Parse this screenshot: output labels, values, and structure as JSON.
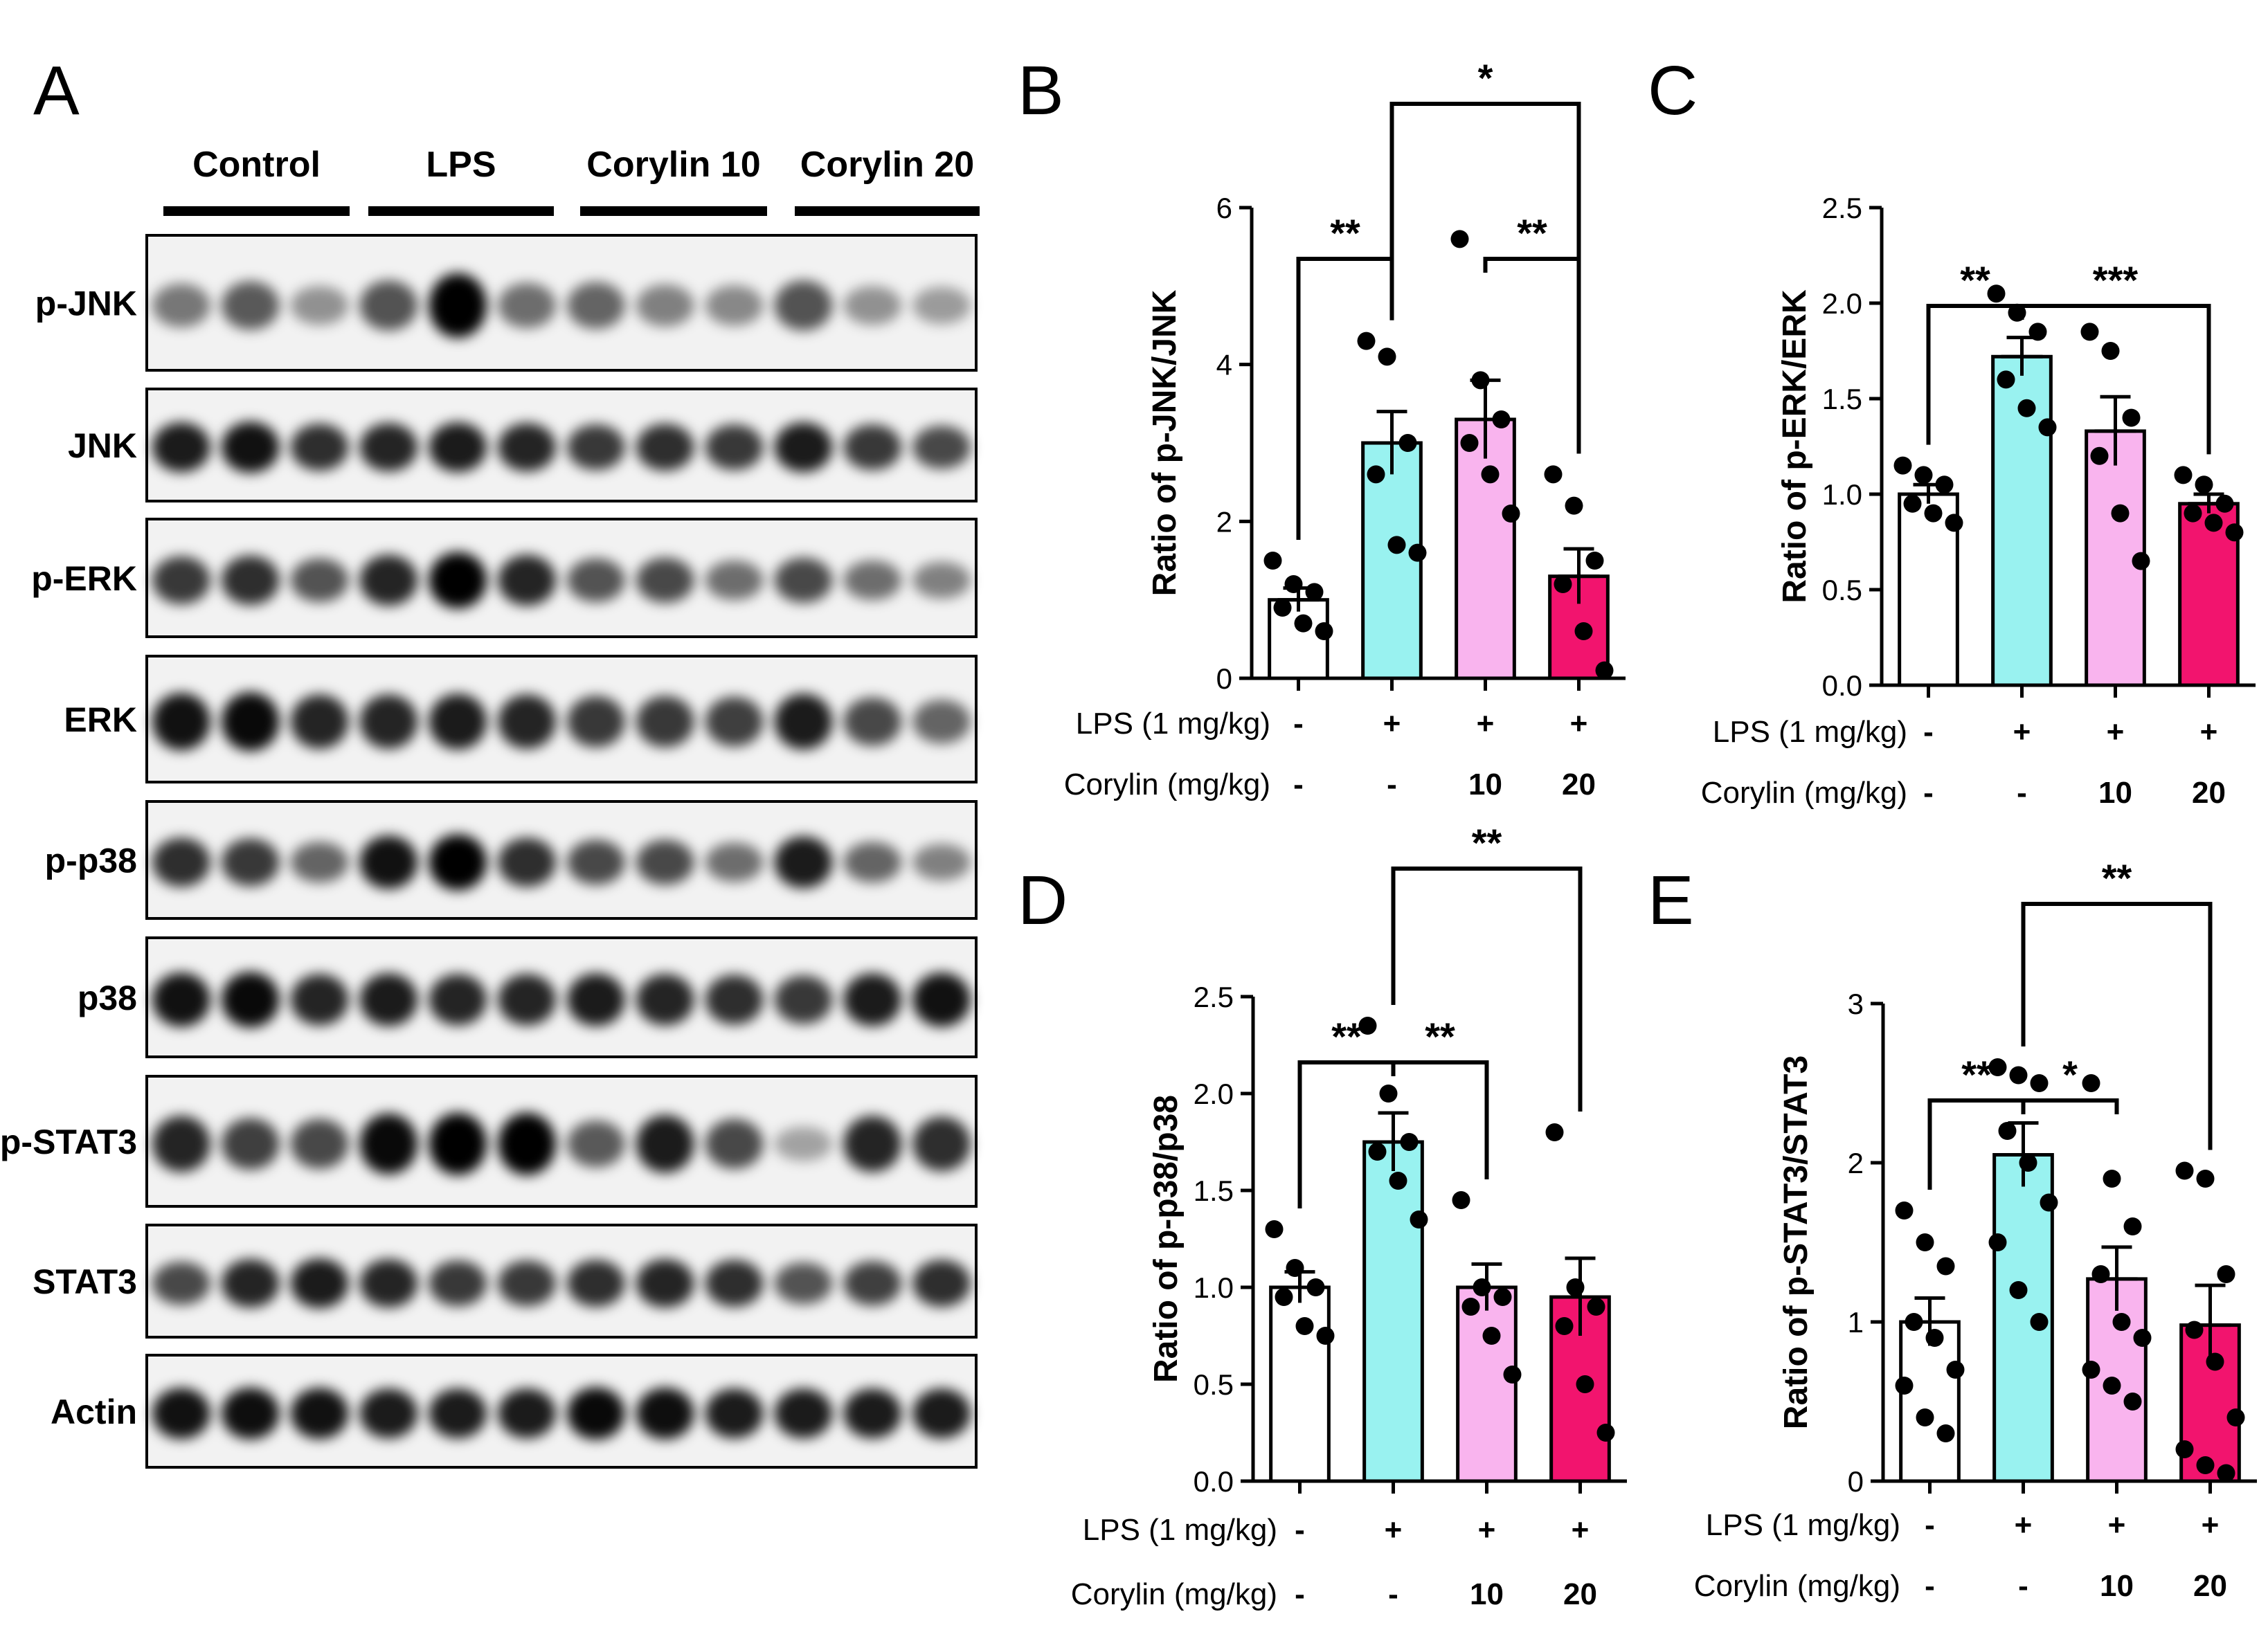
{
  "panel_labels": [
    "A",
    "B",
    "C",
    "D",
    "E"
  ],
  "blot": {
    "groups": [
      "Control",
      "LPS",
      "Corylin 10",
      "Corylin 20"
    ],
    "rows": [
      {
        "label": "p-JNK",
        "intensity": [
          [
            0.35,
            0.5,
            0.2
          ],
          [
            0.55,
            1.0,
            0.4
          ],
          [
            0.45,
            0.3,
            0.25
          ],
          [
            0.55,
            0.2,
            0.15
          ]
        ]
      },
      {
        "label": "JNK",
        "intensity": [
          [
            0.85,
            0.9,
            0.75
          ],
          [
            0.8,
            0.85,
            0.8
          ],
          [
            0.7,
            0.75,
            0.7
          ],
          [
            0.85,
            0.7,
            0.6
          ]
        ]
      },
      {
        "label": "p-ERK",
        "intensity": [
          [
            0.7,
            0.75,
            0.55
          ],
          [
            0.8,
            1.0,
            0.8
          ],
          [
            0.55,
            0.6,
            0.4
          ],
          [
            0.6,
            0.4,
            0.3
          ]
        ]
      },
      {
        "label": "ERK",
        "intensity": [
          [
            0.9,
            0.95,
            0.8
          ],
          [
            0.8,
            0.85,
            0.8
          ],
          [
            0.7,
            0.7,
            0.65
          ],
          [
            0.85,
            0.6,
            0.45
          ]
        ]
      },
      {
        "label": "p-p38",
        "intensity": [
          [
            0.75,
            0.7,
            0.45
          ],
          [
            0.9,
            1.0,
            0.75
          ],
          [
            0.6,
            0.6,
            0.4
          ],
          [
            0.85,
            0.45,
            0.3
          ]
        ]
      },
      {
        "label": "p38",
        "intensity": [
          [
            0.9,
            0.95,
            0.8
          ],
          [
            0.85,
            0.8,
            0.8
          ],
          [
            0.85,
            0.8,
            0.75
          ],
          [
            0.7,
            0.85,
            0.9
          ]
        ]
      },
      {
        "label": "p-STAT3",
        "intensity": [
          [
            0.8,
            0.65,
            0.6
          ],
          [
            0.95,
            1.0,
            1.0
          ],
          [
            0.5,
            0.85,
            0.6
          ],
          [
            0.1,
            0.8,
            0.75
          ]
        ]
      },
      {
        "label": "STAT3",
        "intensity": [
          [
            0.6,
            0.8,
            0.85
          ],
          [
            0.8,
            0.7,
            0.7
          ],
          [
            0.75,
            0.8,
            0.75
          ],
          [
            0.55,
            0.65,
            0.75
          ]
        ]
      },
      {
        "label": "Actin",
        "intensity": [
          [
            0.9,
            0.92,
            0.9
          ],
          [
            0.85,
            0.85,
            0.85
          ],
          [
            0.95,
            0.92,
            0.85
          ],
          [
            0.85,
            0.85,
            0.85
          ]
        ]
      }
    ]
  },
  "chart_data": [
    {
      "panel": "B",
      "type": "bar",
      "ylabel": "Ratio of p-JNK/JNK",
      "ylim": [
        0,
        6
      ],
      "yticks": [
        "0",
        "2",
        "4",
        "6"
      ],
      "ytick_values": [
        0,
        2,
        4,
        6
      ],
      "values": [
        1.0,
        3.0,
        3.3,
        1.3
      ],
      "errors": [
        0.15,
        0.4,
        0.5,
        0.35
      ],
      "points": [
        [
          1.5,
          1.2,
          1.1,
          0.9,
          0.7,
          0.6
        ],
        [
          4.3,
          4.1,
          3.0,
          2.6,
          1.7,
          1.6
        ],
        [
          5.6,
          3.8,
          3.3,
          3.0,
          2.6,
          2.1
        ],
        [
          2.6,
          2.2,
          1.5,
          1.2,
          0.6,
          0.1
        ]
      ],
      "colors": [
        "#ffffff",
        "#99f2f0",
        "#f9b4ee",
        "#f2146e"
      ],
      "condition_rows": [
        {
          "label": "LPS (1 mg/kg)",
          "values": [
            "-",
            "+",
            "+",
            "+"
          ]
        },
        {
          "label": "Corylin (mg/kg)",
          "values": [
            "-",
            "-",
            "10",
            "20"
          ]
        }
      ],
      "significance": [
        {
          "from": 0,
          "to": 1,
          "label": "**",
          "level": 0
        },
        {
          "from": 2,
          "to": 3,
          "label": "**",
          "level": 0
        },
        {
          "from": 1,
          "to": 3,
          "label": "*",
          "level": 1
        }
      ]
    },
    {
      "panel": "C",
      "type": "bar",
      "ylabel": "Ratio of p-ERK/ERK",
      "ylim": [
        0,
        2.5
      ],
      "yticks": [
        "0.0",
        "0.5",
        "1.0",
        "1.5",
        "2.0",
        "2.5"
      ],
      "ytick_values": [
        0,
        0.5,
        1.0,
        1.5,
        2.0,
        2.5
      ],
      "values": [
        1.0,
        1.72,
        1.33,
        0.95
      ],
      "errors": [
        0.05,
        0.1,
        0.18,
        0.05
      ],
      "points": [
        [
          1.15,
          1.1,
          1.05,
          0.95,
          0.9,
          0.85
        ],
        [
          2.05,
          1.95,
          1.85,
          1.6,
          1.45,
          1.35
        ],
        [
          1.85,
          1.75,
          1.4,
          1.2,
          0.9,
          0.65
        ],
        [
          1.1,
          1.05,
          0.95,
          0.9,
          0.85,
          0.8
        ]
      ],
      "colors": [
        "#ffffff",
        "#99f2f0",
        "#f9b4ee",
        "#f2146e"
      ],
      "condition_rows": [
        {
          "label": "LPS (1 mg/kg)",
          "values": [
            "-",
            "+",
            "+",
            "+"
          ]
        },
        {
          "label": "Corylin (mg/kg)",
          "values": [
            "-",
            "-",
            "10",
            "20"
          ]
        }
      ],
      "significance": [
        {
          "from": 0,
          "to": 1,
          "label": "**",
          "level": 0
        },
        {
          "from": 1,
          "to": 3,
          "label": "***",
          "level": 0
        }
      ]
    },
    {
      "panel": "D",
      "type": "bar",
      "ylabel": "Ratio of p-p38/p38",
      "ylim": [
        0,
        2.5
      ],
      "yticks": [
        "0.0",
        "0.5",
        "1.0",
        "1.5",
        "2.0",
        "2.5"
      ],
      "ytick_values": [
        0,
        0.5,
        1.0,
        1.5,
        2.0,
        2.5
      ],
      "values": [
        1.0,
        1.75,
        1.0,
        0.95
      ],
      "errors": [
        0.08,
        0.15,
        0.12,
        0.2
      ],
      "points": [
        [
          1.3,
          1.1,
          1.0,
          0.95,
          0.8,
          0.75
        ],
        [
          2.35,
          2.0,
          1.75,
          1.7,
          1.55,
          1.35
        ],
        [
          1.45,
          1.0,
          0.95,
          0.9,
          0.75,
          0.55
        ],
        [
          1.8,
          1.0,
          0.9,
          0.8,
          0.5,
          0.25
        ]
      ],
      "colors": [
        "#ffffff",
        "#99f2f0",
        "#f9b4ee",
        "#f2146e"
      ],
      "condition_rows": [
        {
          "label": "LPS (1 mg/kg)",
          "values": [
            "-",
            "+",
            "+",
            "+"
          ]
        },
        {
          "label": "Corylin (mg/kg)",
          "values": [
            "-",
            "-",
            "10",
            "20"
          ]
        }
      ],
      "significance": [
        {
          "from": 0,
          "to": 1,
          "label": "**",
          "level": 0
        },
        {
          "from": 1,
          "to": 2,
          "label": "**",
          "level": 0
        },
        {
          "from": 1,
          "to": 3,
          "label": "**",
          "level": 1
        }
      ]
    },
    {
      "panel": "E",
      "type": "bar",
      "ylabel": "Ratio of p-STAT3/STAT3",
      "ylim": [
        0,
        3
      ],
      "yticks": [
        "0",
        "1",
        "2",
        "3"
      ],
      "ytick_values": [
        0,
        1,
        2,
        3
      ],
      "values": [
        1.0,
        2.05,
        1.27,
        0.98
      ],
      "errors": [
        0.15,
        0.2,
        0.2,
        0.25
      ],
      "points": [
        [
          1.7,
          1.5,
          1.35,
          1.0,
          0.9,
          0.7,
          0.6,
          0.4,
          0.3
        ],
        [
          2.6,
          2.55,
          2.5,
          2.2,
          2.0,
          1.75,
          1.5,
          1.2,
          1.0
        ],
        [
          2.5,
          1.9,
          1.6,
          1.3,
          1.0,
          0.9,
          0.7,
          0.6,
          0.5
        ],
        [
          1.95,
          1.9,
          1.3,
          0.95,
          0.75,
          0.4,
          0.2,
          0.1,
          0.05
        ]
      ],
      "colors": [
        "#ffffff",
        "#99f2f0",
        "#f9b4ee",
        "#f2146e"
      ],
      "condition_rows": [
        {
          "label": "LPS (1 mg/kg)",
          "values": [
            "-",
            "+",
            "+",
            "+"
          ]
        },
        {
          "label": "Corylin (mg/kg)",
          "values": [
            "-",
            "-",
            "10",
            "20"
          ]
        }
      ],
      "significance": [
        {
          "from": 0,
          "to": 1,
          "label": "**",
          "level": 0
        },
        {
          "from": 1,
          "to": 2,
          "label": "*",
          "level": 0
        },
        {
          "from": 1,
          "to": 3,
          "label": "**",
          "level": 1
        }
      ]
    }
  ]
}
